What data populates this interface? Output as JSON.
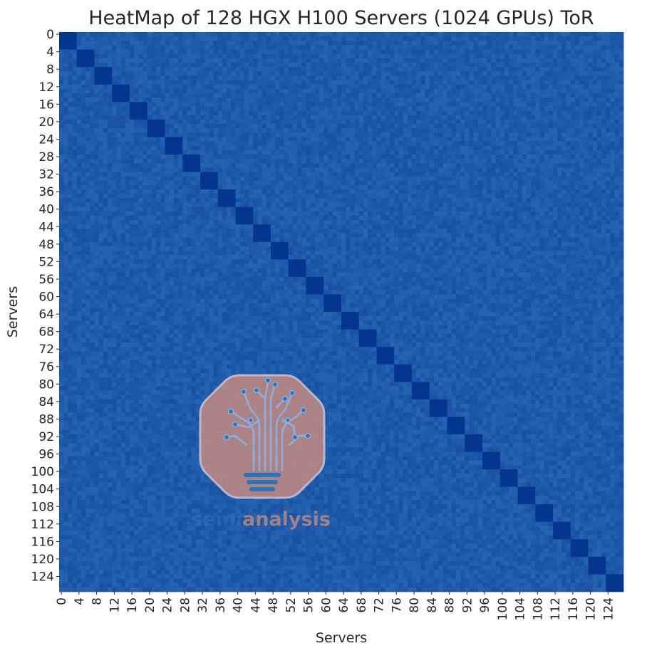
{
  "chart_data": {
    "type": "heatmap",
    "title": "HeatMap of 128 HGX H100 Servers (1024 GPUs) ToR",
    "xlabel": "Servers",
    "ylabel": "Servers",
    "n_rows": 128,
    "n_cols": 128,
    "block_size": 4,
    "x_ticks": [
      "0",
      "4",
      "8",
      "12",
      "16",
      "20",
      "24",
      "28",
      "32",
      "36",
      "40",
      "44",
      "48",
      "52",
      "56",
      "60",
      "64",
      "68",
      "72",
      "76",
      "80",
      "84",
      "88",
      "92",
      "96",
      "100",
      "104",
      "108",
      "112",
      "116",
      "120",
      "124"
    ],
    "y_ticks": [
      "0",
      "4",
      "8",
      "12",
      "16",
      "20",
      "24",
      "28",
      "32",
      "36",
      "40",
      "44",
      "48",
      "52",
      "56",
      "60",
      "64",
      "68",
      "72",
      "76",
      "80",
      "84",
      "88",
      "92",
      "96",
      "100",
      "104",
      "108",
      "112",
      "116",
      "120",
      "124"
    ],
    "value_description": "Random background intensity with dark 4x4 blocks along the diagonal (servers sharing a ToR switch)",
    "background_value_range": [
      0.45,
      0.75
    ],
    "diagonal_block_value": 1.0,
    "colormap": "Blues",
    "colorbar": false,
    "grid": false
  },
  "watermark": {
    "text_left": "semi",
    "text_right": "analysis",
    "badge_color": "#c58a80",
    "left_text_color": "#2f78bd",
    "right_text_color": "#b78884"
  }
}
